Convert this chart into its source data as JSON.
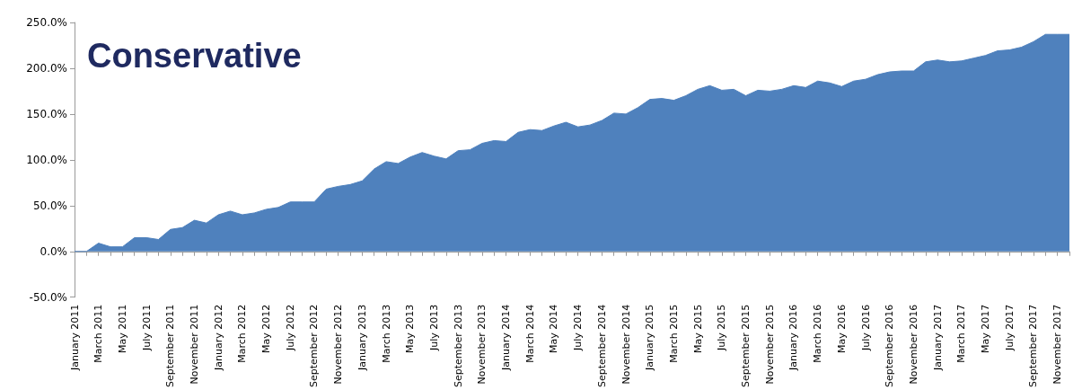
{
  "chart_data": {
    "type": "area",
    "title": "Conservative",
    "categories": [
      "January 2011",
      null,
      "March 2011",
      null,
      "May 2011",
      null,
      "July 2011",
      null,
      "September 2011",
      null,
      "November 2011",
      null,
      "January 2012",
      null,
      "March 2012",
      null,
      "May 2012",
      null,
      "July 2012",
      null,
      "September 2012",
      null,
      "November 2012",
      null,
      "January 2013",
      null,
      "March 2013",
      null,
      "May 2013",
      null,
      "July 2013",
      null,
      "September 2013",
      null,
      "November 2013",
      null,
      "January 2014",
      null,
      "March 2014",
      null,
      "May 2014",
      null,
      "July 2014",
      null,
      "September 2014",
      null,
      "November 2014",
      null,
      "January 2015",
      null,
      "March 2015",
      null,
      "May 2015",
      null,
      "July 2015",
      null,
      "September 2015",
      null,
      "November 2015",
      null,
      "January 2016",
      null,
      "March 2016",
      null,
      "May 2016",
      null,
      "July 2016",
      null,
      "September 2016",
      null,
      "November 2016",
      null,
      "January 2017",
      null,
      "March 2017",
      null,
      "May 2017",
      null,
      "July 2017",
      null,
      "September 2017",
      null,
      "November 2017",
      null
    ],
    "series": [
      {
        "color": "#4f81bd",
        "values": [
          0,
          0,
          9,
          5,
          5,
          15,
          15,
          13,
          24,
          26,
          34,
          31,
          40,
          44,
          40,
          42,
          46,
          48,
          54,
          54,
          54,
          68,
          71,
          73,
          77,
          90,
          98,
          96,
          103,
          108,
          104,
          101,
          110,
          111,
          118,
          121,
          120,
          130,
          133,
          132,
          137,
          141,
          136,
          138,
          143,
          151,
          150,
          157,
          166,
          167,
          165,
          170,
          177,
          181,
          176,
          177,
          170,
          176,
          175,
          177,
          181,
          179,
          186,
          184,
          180,
          186,
          188,
          193,
          196,
          197,
          197,
          207,
          209,
          207,
          208,
          211,
          214,
          219,
          220,
          223,
          229,
          237,
          237,
          237
        ]
      }
    ],
    "ylim": [
      -50,
      250
    ],
    "yticks": [
      {
        "value": -50,
        "label": "-50.0%"
      },
      {
        "value": 0,
        "label": "0.0%"
      },
      {
        "value": 50,
        "label": "50.0%"
      },
      {
        "value": 100,
        "label": "100.0%"
      },
      {
        "value": 150,
        "label": "150.0%"
      },
      {
        "value": 200,
        "label": "200.0%"
      },
      {
        "value": 250,
        "label": "250.0%"
      }
    ],
    "tick_labels": true
  }
}
